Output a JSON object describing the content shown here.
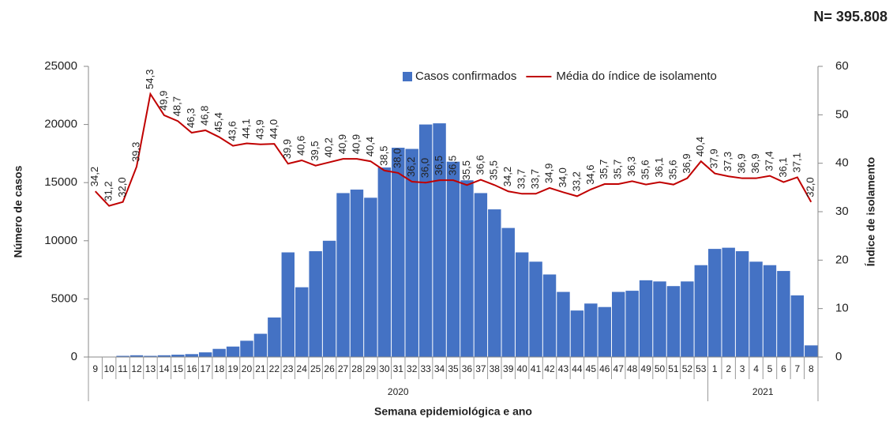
{
  "chart_data": {
    "type": "bar-line",
    "note_n": "N= 395.808",
    "x_label": "Semana  epidemiológica  e ano",
    "y_label": "Número de casos",
    "y2_label": "Índice de isolamento",
    "categories": [
      "9",
      "10",
      "11",
      "12",
      "13",
      "14",
      "15",
      "16",
      "17",
      "18",
      "19",
      "20",
      "21",
      "22",
      "23",
      "24",
      "25",
      "26",
      "27",
      "28",
      "29",
      "30",
      "31",
      "32",
      "33",
      "34",
      "35",
      "36",
      "37",
      "38",
      "39",
      "40",
      "41",
      "42",
      "43",
      "44",
      "45",
      "46",
      "47",
      "48",
      "49",
      "50",
      "51",
      "52",
      "53",
      "1",
      "2",
      "3",
      "4",
      "5",
      "6",
      "7",
      "8"
    ],
    "years": [
      "2020",
      "2021"
    ],
    "ylim": [
      0,
      25000
    ],
    "yticks": [
      0,
      5000,
      10000,
      15000,
      20000,
      25000
    ],
    "y2lim": [
      0,
      60
    ],
    "y2ticks": [
      0,
      10,
      20,
      30,
      40,
      50,
      60
    ],
    "series": [
      {
        "name": "Casos confirmados",
        "type": "bar",
        "color": "#4472c4",
        "values": [
          0,
          0,
          100,
          150,
          100,
          150,
          200,
          250,
          400,
          700,
          900,
          1400,
          2000,
          3400,
          9000,
          6000,
          9100,
          10000,
          14100,
          14400,
          13700,
          16300,
          18000,
          17900,
          20000,
          20100,
          16800,
          15200,
          14100,
          12700,
          11100,
          9000,
          8200,
          7100,
          5600,
          4000,
          4600,
          4300,
          5600,
          5700,
          6600,
          6500,
          6100,
          6500,
          7900,
          9300,
          9400,
          9100,
          8200,
          7900,
          7400,
          5300,
          1000
        ]
      },
      {
        "name": "Média do índice de isolamento",
        "type": "line",
        "axis": "y2",
        "color": "#c00000",
        "values": [
          34.2,
          31.2,
          32.0,
          39.3,
          54.3,
          49.9,
          48.7,
          46.3,
          46.8,
          45.4,
          43.6,
          44.1,
          43.9,
          44.0,
          39.9,
          40.6,
          39.5,
          40.2,
          40.9,
          40.9,
          40.4,
          38.5,
          38.0,
          36.2,
          36.0,
          36.5,
          36.5,
          35.5,
          36.6,
          35.5,
          34.2,
          33.7,
          33.7,
          34.9,
          34.0,
          33.2,
          34.6,
          35.7,
          35.7,
          36.3,
          35.6,
          36.1,
          35.6,
          36.9,
          40.4,
          37.9,
          37.3,
          36.9,
          36.9,
          37.4,
          36.1,
          37.1,
          32.0
        ],
        "value_labels": [
          "34,2",
          "31,2",
          "32,0",
          "39,3",
          "54,3",
          "49,9",
          "48,7",
          "46,3",
          "46,8",
          "45,4",
          "43,6",
          "44,1",
          "43,9",
          "44,0",
          "39,9",
          "40,6",
          "39,5",
          "40,2",
          "40,9",
          "40,9",
          "40,4",
          "38,5",
          "38,0",
          "36,2",
          "36,0",
          "36,5",
          "36,5",
          "35,5",
          "36,6",
          "35,5",
          "34,2",
          "33,7",
          "33,7",
          "34,9",
          "34,0",
          "33,2",
          "34,6",
          "35,7",
          "35,7",
          "36,3",
          "35,6",
          "36,1",
          "35,6",
          "36,9",
          "40,4",
          "37,9",
          "37,3",
          "36,9",
          "36,9",
          "37,4",
          "36,1",
          "37,1",
          "32,0"
        ]
      }
    ]
  }
}
